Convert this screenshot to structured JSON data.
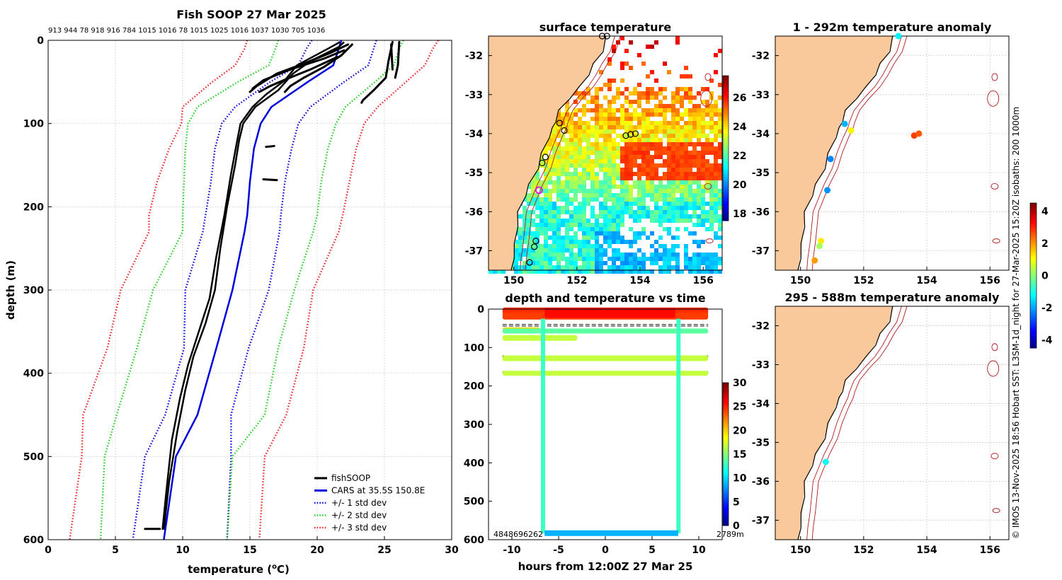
{
  "chart_data": [
    {
      "type": "line",
      "title": "Fish SOOP 27 Mar 2025",
      "xlabel": "temperature (",
      "xlabel_sup": "o",
      "xlabel_end": "C)",
      "ylabel": "depth (m)",
      "xlim": [
        0,
        30
      ],
      "ylim": [
        0,
        600
      ],
      "xticks": [
        0,
        5,
        10,
        15,
        20,
        25,
        30
      ],
      "yticks": [
        0,
        100,
        200,
        300,
        400,
        500,
        600
      ],
      "top_labels": "913 944 78 918 916 784 1015 1016 78 1015 1025 1016 1037 1030 705 1036",
      "legend": [
        {
          "label": "fishSOOP",
          "color": "#000000"
        },
        {
          "label": "CARS at 35.5S 150.8E",
          "color": "#0000dd"
        },
        {
          "label": "+/- 1 std dev",
          "color": "#0000dd"
        },
        {
          "label": "+/- 2 std dev",
          "color": "#22cc22"
        },
        {
          "label": "+/- 3 std dev",
          "color": "#ee2222"
        }
      ],
      "series": [
        {
          "name": "CARS at 35.5S 150.8E",
          "x": [
            21.8,
            21.6,
            21.2,
            19.3,
            16.6,
            15.8,
            15.3,
            15.0,
            14.8,
            14.6,
            13.7,
            12.5,
            11.1,
            9.5,
            8.6
          ],
          "y": [
            0,
            10,
            30,
            50,
            80,
            100,
            130,
            170,
            210,
            230,
            300,
            370,
            450,
            500,
            600
          ]
        },
        {
          "name": "+1 std",
          "x": [
            24.4,
            24.2,
            23.8,
            22.0,
            19.5,
            18.6,
            18.1,
            17.6,
            17.3,
            17.2,
            16.4,
            14.9,
            13.6,
            13.6,
            13.3
          ],
          "y": [
            0,
            10,
            30,
            50,
            80,
            100,
            130,
            170,
            210,
            230,
            300,
            370,
            450,
            500,
            600
          ]
        },
        {
          "name": "-1 std",
          "x": [
            19.6,
            19.2,
            18.6,
            16.5,
            13.9,
            12.9,
            12.4,
            12.1,
            11.7,
            11.5,
            10.2,
            10.1,
            8.7,
            7.2,
            6.3
          ],
          "y": [
            0,
            10,
            30,
            50,
            80,
            100,
            130,
            170,
            210,
            230,
            300,
            370,
            450,
            500,
            600
          ]
        },
        {
          "name": "+2 std",
          "x": [
            26.4,
            26.1,
            25.7,
            24.3,
            22.1,
            21.4,
            20.8,
            20.3,
            20.0,
            19.7,
            18.3,
            17.1,
            16.1,
            13.7,
            13.3
          ],
          "y": [
            0,
            10,
            30,
            50,
            80,
            100,
            130,
            170,
            210,
            230,
            300,
            370,
            450,
            500,
            600
          ]
        },
        {
          "name": "-2 std",
          "x": [
            17.1,
            16.9,
            16.4,
            14.1,
            11.1,
            10.4,
            10.2,
            10.1,
            10.0,
            10.0,
            7.8,
            6.6,
            5.1,
            4.2,
            3.9
          ],
          "y": [
            0,
            10,
            30,
            50,
            80,
            100,
            130,
            170,
            210,
            230,
            300,
            370,
            450,
            500,
            600
          ]
        },
        {
          "name": "+3 std",
          "x": [
            29.0,
            28.6,
            28.0,
            26.6,
            24.5,
            23.5,
            22.9,
            22.4,
            21.9,
            21.6,
            19.7,
            19.0,
            17.7,
            16.1,
            15.7
          ],
          "y": [
            0,
            10,
            30,
            50,
            80,
            100,
            130,
            170,
            210,
            230,
            300,
            370,
            450,
            500,
            600
          ]
        },
        {
          "name": "-3 std",
          "x": [
            14.8,
            14.6,
            13.9,
            12.2,
            10.0,
            9.9,
            9.0,
            8.1,
            7.5,
            7.5,
            5.4,
            4.4,
            2.6,
            2.5,
            1.6
          ],
          "y": [
            0,
            10,
            30,
            50,
            80,
            100,
            130,
            170,
            210,
            230,
            300,
            370,
            450,
            500,
            600
          ]
        },
        {
          "name": "fishSOOP A",
          "x": [
            22.0,
            21.6,
            19.5,
            18.2,
            17.1,
            15.4,
            14.5,
            14.2,
            13.9,
            13.3,
            12.8,
            12.4,
            11.7,
            10.8,
            10.2,
            9.6,
            9.0,
            8.6
          ],
          "y": [
            2,
            8,
            25,
            40,
            60,
            80,
            100,
            120,
            150,
            200,
            250,
            300,
            340,
            380,
            420,
            470,
            530,
            588
          ]
        },
        {
          "name": "fishSOOP B",
          "x": [
            21.7,
            20.8,
            18.5,
            17.6,
            16.2,
            15.2,
            14.3,
            14.0,
            13.6,
            13.1,
            12.5,
            12.0,
            11.2,
            10.4,
            9.8,
            9.2,
            8.8,
            8.5
          ],
          "y": [
            2,
            10,
            30,
            48,
            65,
            80,
            100,
            125,
            160,
            210,
            260,
            310,
            350,
            390,
            430,
            480,
            540,
            588
          ]
        }
      ]
    },
    {
      "type": "heatmap",
      "title": "surface temperature",
      "xlim": [
        149.2,
        156.6
      ],
      "ylim": [
        -37.5,
        -31.5
      ],
      "xticks": [
        150,
        152,
        154,
        156
      ],
      "yticks": [
        -32,
        -33,
        -34,
        -35,
        -36,
        -37
      ],
      "colorbar_ticks": [
        18,
        20,
        22,
        24,
        26
      ],
      "colorbar_range": [
        17.5,
        27.5
      ]
    },
    {
      "type": "scatter",
      "title": "depth and temperature vs time",
      "xlabel": "hours from 12:00Z 27 Mar 25",
      "xlim": [
        -12.5,
        12.5
      ],
      "ylim": [
        0,
        600
      ],
      "xticks": [
        -10,
        -5,
        0,
        5,
        10
      ],
      "yticks": [
        0,
        100,
        200,
        300,
        400,
        500,
        600
      ],
      "colorbar_ticks": [
        0,
        5,
        10,
        15,
        20,
        25,
        30
      ],
      "bottom_left_text": "4848696262",
      "bottom_right_text": "2789m"
    },
    {
      "type": "scatter",
      "title": "1 - 292m temperature anomaly",
      "xlim": [
        149.2,
        156.6
      ],
      "ylim": [
        -37.5,
        -31.5
      ],
      "xticks": [
        150,
        152,
        154,
        156
      ],
      "yticks": [
        -32,
        -33,
        -34,
        -35,
        -36,
        -37
      ],
      "colorbar_ticks": [
        4,
        2,
        0,
        -2,
        -4
      ],
      "colorbar_range": [
        -4.5,
        4.5
      ],
      "points": [
        {
          "lon": 153.1,
          "lat": -31.5,
          "v": -1.2
        },
        {
          "lon": 151.4,
          "lat": -33.75,
          "v": -1.8
        },
        {
          "lon": 151.6,
          "lat": -33.92,
          "v": 1.2
        },
        {
          "lon": 153.6,
          "lat": -34.05,
          "v": 2.8
        },
        {
          "lon": 153.75,
          "lat": -34.0,
          "v": 2.6
        },
        {
          "lon": 150.95,
          "lat": -34.65,
          "v": -2.2
        },
        {
          "lon": 150.85,
          "lat": -35.45,
          "v": -2.1
        },
        {
          "lon": 150.65,
          "lat": -36.75,
          "v": 1.3
        },
        {
          "lon": 150.6,
          "lat": -36.88,
          "v": 0.3
        },
        {
          "lon": 150.45,
          "lat": -37.25,
          "v": 2.0
        }
      ]
    },
    {
      "type": "scatter",
      "title": "295 - 588m temperature anomaly",
      "xlim": [
        149.2,
        156.6
      ],
      "ylim": [
        -37.5,
        -31.5
      ],
      "xticks": [
        150,
        152,
        154,
        156
      ],
      "yticks": [
        -32,
        -33,
        -34,
        -35,
        -36,
        -37
      ],
      "points": [
        {
          "lon": 150.8,
          "lat": -35.5,
          "v": -1.0
        }
      ]
    }
  ],
  "side_note": "© IMOS 13-Nov-2025 18:56 Hobart SST: L3SM-1d_night for 27-Mar-2025 15:20Z isobaths: 200  1000m",
  "colors": {
    "land": "#f9c89b",
    "isobath": "#b01b1b",
    "coast": "#000000"
  }
}
